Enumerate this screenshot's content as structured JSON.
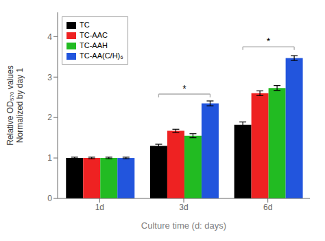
{
  "chart_data": {
    "type": "bar",
    "categories": [
      "1d",
      "3d",
      "6d"
    ],
    "series": [
      {
        "name": "TC",
        "color": "#000000",
        "values": [
          1.0,
          1.3,
          1.82
        ],
        "errors": [
          0.02,
          0.04,
          0.07
        ]
      },
      {
        "name": "TC-AAC",
        "color": "#ee2222",
        "values": [
          1.0,
          1.67,
          2.6
        ],
        "errors": [
          0.02,
          0.04,
          0.06
        ]
      },
      {
        "name": "TC-AAH",
        "color": "#22bb22",
        "values": [
          1.0,
          1.55,
          2.73
        ],
        "errors": [
          0.02,
          0.05,
          0.06
        ]
      },
      {
        "name": "TC-AA(C/H)₆",
        "color": "#2255dd",
        "values": [
          1.0,
          2.35,
          3.47
        ],
        "errors": [
          0.02,
          0.06,
          0.06
        ]
      }
    ],
    "xlabel": "Culture time (d: days)",
    "ylabel": "Relative OD₅₇₀ values\nNormalized by day 1",
    "ylim": [
      0,
      4.6
    ],
    "yticks": [
      0,
      1,
      2,
      3,
      4
    ],
    "grid": false,
    "legend": "upper left",
    "annotations": [
      {
        "category": "3d",
        "y": 2.58,
        "text": "*"
      },
      {
        "category": "6d",
        "y": 3.75,
        "text": "*"
      }
    ]
  }
}
